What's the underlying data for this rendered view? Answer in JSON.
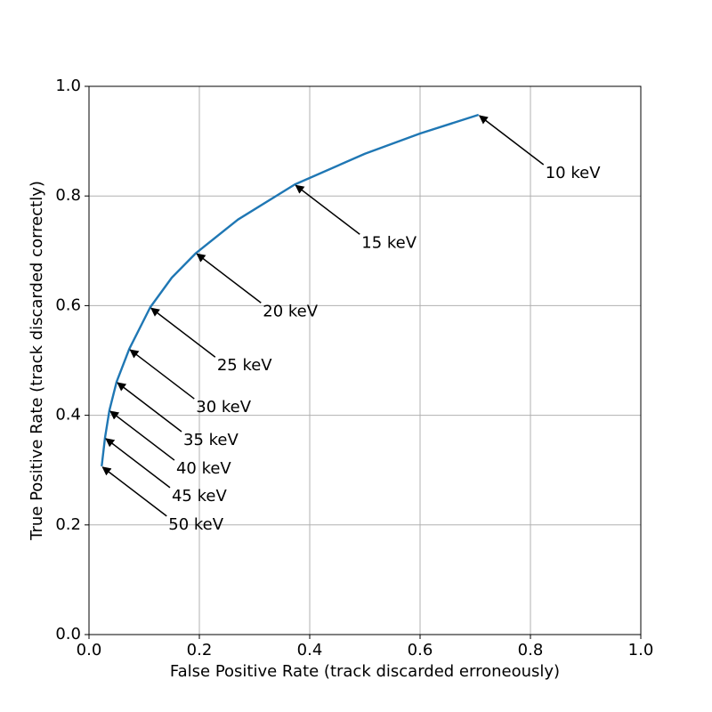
{
  "chart_data": {
    "type": "line",
    "xlabel": "False Positive Rate (track discarded erroneously)",
    "ylabel": "True Positive Rate (track discarded correctly)",
    "x": [
      0.023,
      0.029,
      0.037,
      0.05,
      0.073,
      0.111,
      0.15,
      0.194,
      0.27,
      0.373,
      0.5,
      0.6,
      0.706
    ],
    "series": [
      {
        "color": "#1f77b4",
        "values": [
          0.307,
          0.359,
          0.409,
          0.461,
          0.521,
          0.597,
          0.651,
          0.696,
          0.757,
          0.821,
          0.877,
          0.914,
          0.948
        ]
      }
    ],
    "xlim": [
      0,
      1
    ],
    "ylim": [
      0,
      1
    ],
    "xticks": [
      {
        "value": 0,
        "label": "0.0"
      },
      0.2,
      0.4,
      0.6,
      0.8,
      {
        "value": 1,
        "label": "1.0"
      }
    ],
    "yticks": [
      {
        "value": 0,
        "label": "0.0"
      },
      0.2,
      0.4,
      0.6,
      0.8,
      {
        "value": 1,
        "label": "1.0"
      }
    ],
    "grid": true,
    "annotations": [
      {
        "text": "10 keV",
        "x": 0.706,
        "y": 0.948
      },
      {
        "text": "15 keV",
        "x": 0.373,
        "y": 0.821
      },
      {
        "text": "20 keV",
        "x": 0.194,
        "y": 0.696
      },
      {
        "text": "25 keV",
        "x": 0.111,
        "y": 0.597
      },
      {
        "text": "30 keV",
        "x": 0.073,
        "y": 0.521
      },
      {
        "text": "35 keV",
        "x": 0.05,
        "y": 0.461
      },
      {
        "text": "40 keV",
        "x": 0.037,
        "y": 0.409
      },
      {
        "text": "45 keV",
        "x": 0.029,
        "y": 0.359
      },
      {
        "text": "50 keV",
        "x": 0.023,
        "y": 0.307
      }
    ]
  }
}
